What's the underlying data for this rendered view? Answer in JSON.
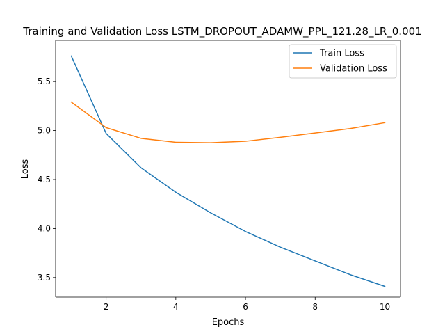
{
  "chart_data": {
    "type": "line",
    "title": "Training and Validation Loss LSTM_DROPOUT_ADAMW_PPL_121.28_LR_0.001",
    "xlabel": "Epochs",
    "ylabel": "Loss",
    "x": [
      1,
      2,
      3,
      4,
      5,
      6,
      7,
      8,
      9,
      10
    ],
    "xlim": [
      0.55,
      10.45
    ],
    "ylim": [
      3.3,
      5.92
    ],
    "xticks": [
      2,
      4,
      6,
      8,
      10
    ],
    "yticks": [
      3.5,
      4.0,
      4.5,
      5.0,
      5.5
    ],
    "xtick_labels": [
      "2",
      "4",
      "6",
      "8",
      "10"
    ],
    "ytick_labels": [
      "3.5",
      "4.0",
      "4.5",
      "5.0",
      "5.5"
    ],
    "grid": false,
    "legend_position": "top-right",
    "series": [
      {
        "name": "Train Loss",
        "color": "#1f77b4",
        "values": [
          5.76,
          4.97,
          4.62,
          4.37,
          4.16,
          3.97,
          3.81,
          3.67,
          3.53,
          3.41
        ]
      },
      {
        "name": "Validation Loss",
        "color": "#ff7f0e",
        "values": [
          5.29,
          5.03,
          4.92,
          4.88,
          4.875,
          4.89,
          4.93,
          4.975,
          5.02,
          5.08
        ]
      }
    ]
  }
}
